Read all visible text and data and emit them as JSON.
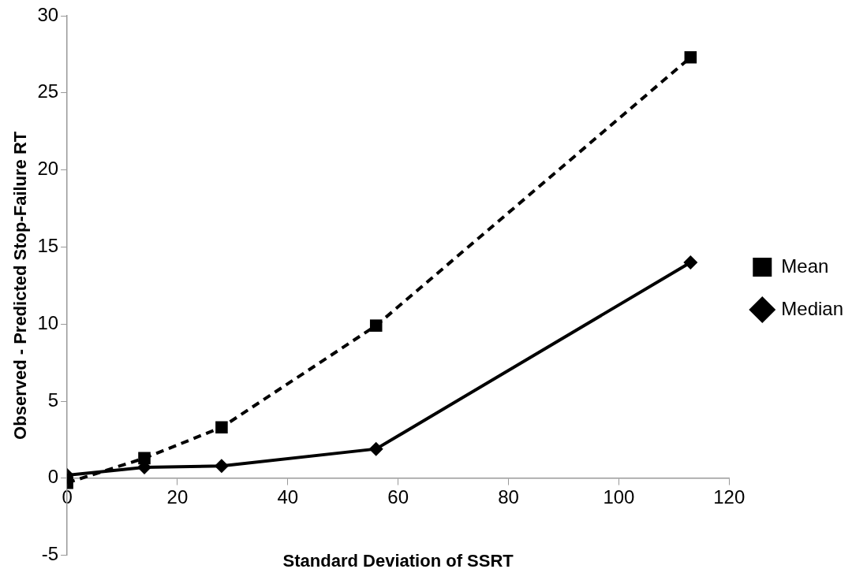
{
  "chart_data": {
    "type": "line",
    "xlabel": "Standard Deviation of SSRT",
    "ylabel": "Observed - Predicted Stop-Failure RT",
    "x": [
      0,
      14,
      28,
      56,
      113
    ],
    "series": [
      {
        "name": "Mean",
        "color": "#000000",
        "values": [
          -0.3,
          1.3,
          3.3,
          9.9,
          27.3
        ],
        "marker": "square",
        "line_style": "dashed"
      },
      {
        "name": "Median",
        "color": "#000000",
        "values": [
          0.2,
          0.7,
          0.8,
          1.9,
          14.0
        ],
        "marker": "diamond",
        "line_style": "solid"
      }
    ],
    "xlim": [
      0,
      120
    ],
    "xticks": [
      0,
      20,
      40,
      60,
      80,
      100,
      120
    ],
    "ylim": [
      -5,
      30
    ],
    "yticks": [
      -5,
      0,
      5,
      10,
      15,
      20,
      25,
      30
    ],
    "grid": false,
    "legend": "right"
  }
}
